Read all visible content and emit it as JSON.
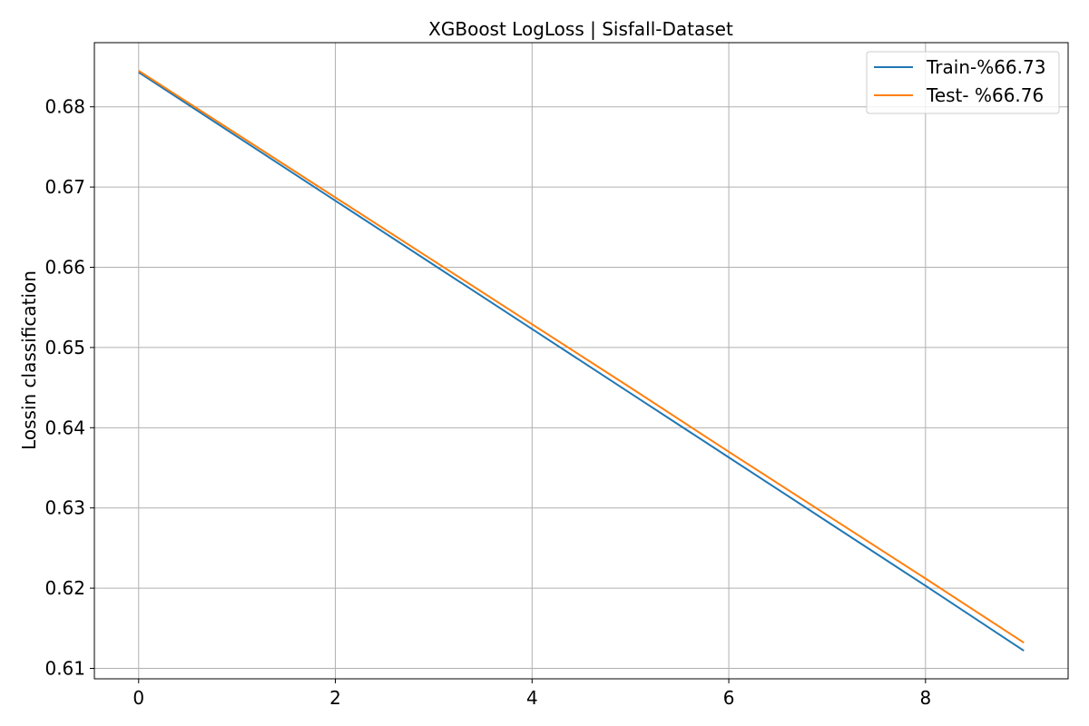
{
  "chart_data": {
    "type": "line",
    "title": "XGBoost LogLoss | Sisfall-Dataset",
    "xlabel": "",
    "ylabel": "Lossin classification",
    "x": [
      0,
      1,
      2,
      3,
      4,
      5,
      6,
      7,
      8,
      9
    ],
    "xlim": [
      -0.45,
      9.45
    ],
    "ylim": [
      0.6087,
      0.688
    ],
    "xticks": [
      "0",
      "2",
      "4",
      "6",
      "8"
    ],
    "yticks": [
      "0.61",
      "0.62",
      "0.63",
      "0.64",
      "0.65",
      "0.66",
      "0.67",
      "0.68"
    ],
    "grid": true,
    "legend_position": "top-right",
    "series": [
      {
        "name": "Train-%66.73",
        "color": "#1f77b4",
        "values": [
          0.6843,
          0.6763,
          0.6683,
          0.6603,
          0.6523,
          0.6443,
          0.6363,
          0.6283,
          0.6203,
          0.6122
        ]
      },
      {
        "name": "Test- %66.76",
        "color": "#ff7f0e",
        "values": [
          0.6845,
          0.6766,
          0.6687,
          0.6608,
          0.6529,
          0.645,
          0.637,
          0.6291,
          0.6212,
          0.6132
        ]
      }
    ]
  }
}
